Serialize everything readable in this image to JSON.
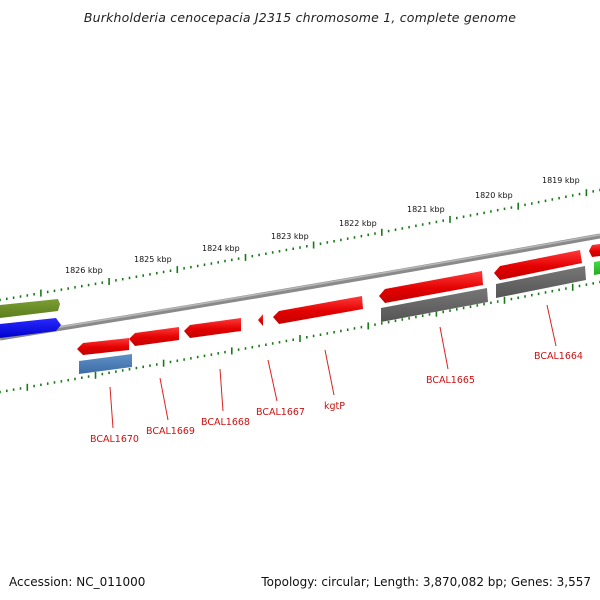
{
  "title": "Burkholderia cenocepacia J2315 chromosome 1, complete genome",
  "footer": {
    "accession": "Accession: NC_011000",
    "topology": "Topology: circular; Length: 3,870,082 bp; Genes: 3,557"
  },
  "scale": {
    "ticks": [
      "1826 kbp",
      "1825 kbp",
      "1824 kbp",
      "1823 kbp",
      "1822 kbp",
      "1821 kbp",
      "1820 kbp",
      "1819 kbp"
    ]
  },
  "gene_labels": [
    "BCAL1670",
    "BCAL1669",
    "BCAL1668",
    "BCAL1667",
    "kgtP",
    "BCAL1665",
    "BCAL1664"
  ],
  "colors": {
    "cds": "#ee1111",
    "gene_label": "#cc1111",
    "backbone": "#8a8a8a",
    "scale_marks": "#1a7a1a",
    "olive_feature": "#6b8e23",
    "blue_feature": "#1111ee",
    "steelblue_feature": "#4a7db5",
    "grey_feature": "#666666",
    "green_feature": "#33cc33"
  }
}
